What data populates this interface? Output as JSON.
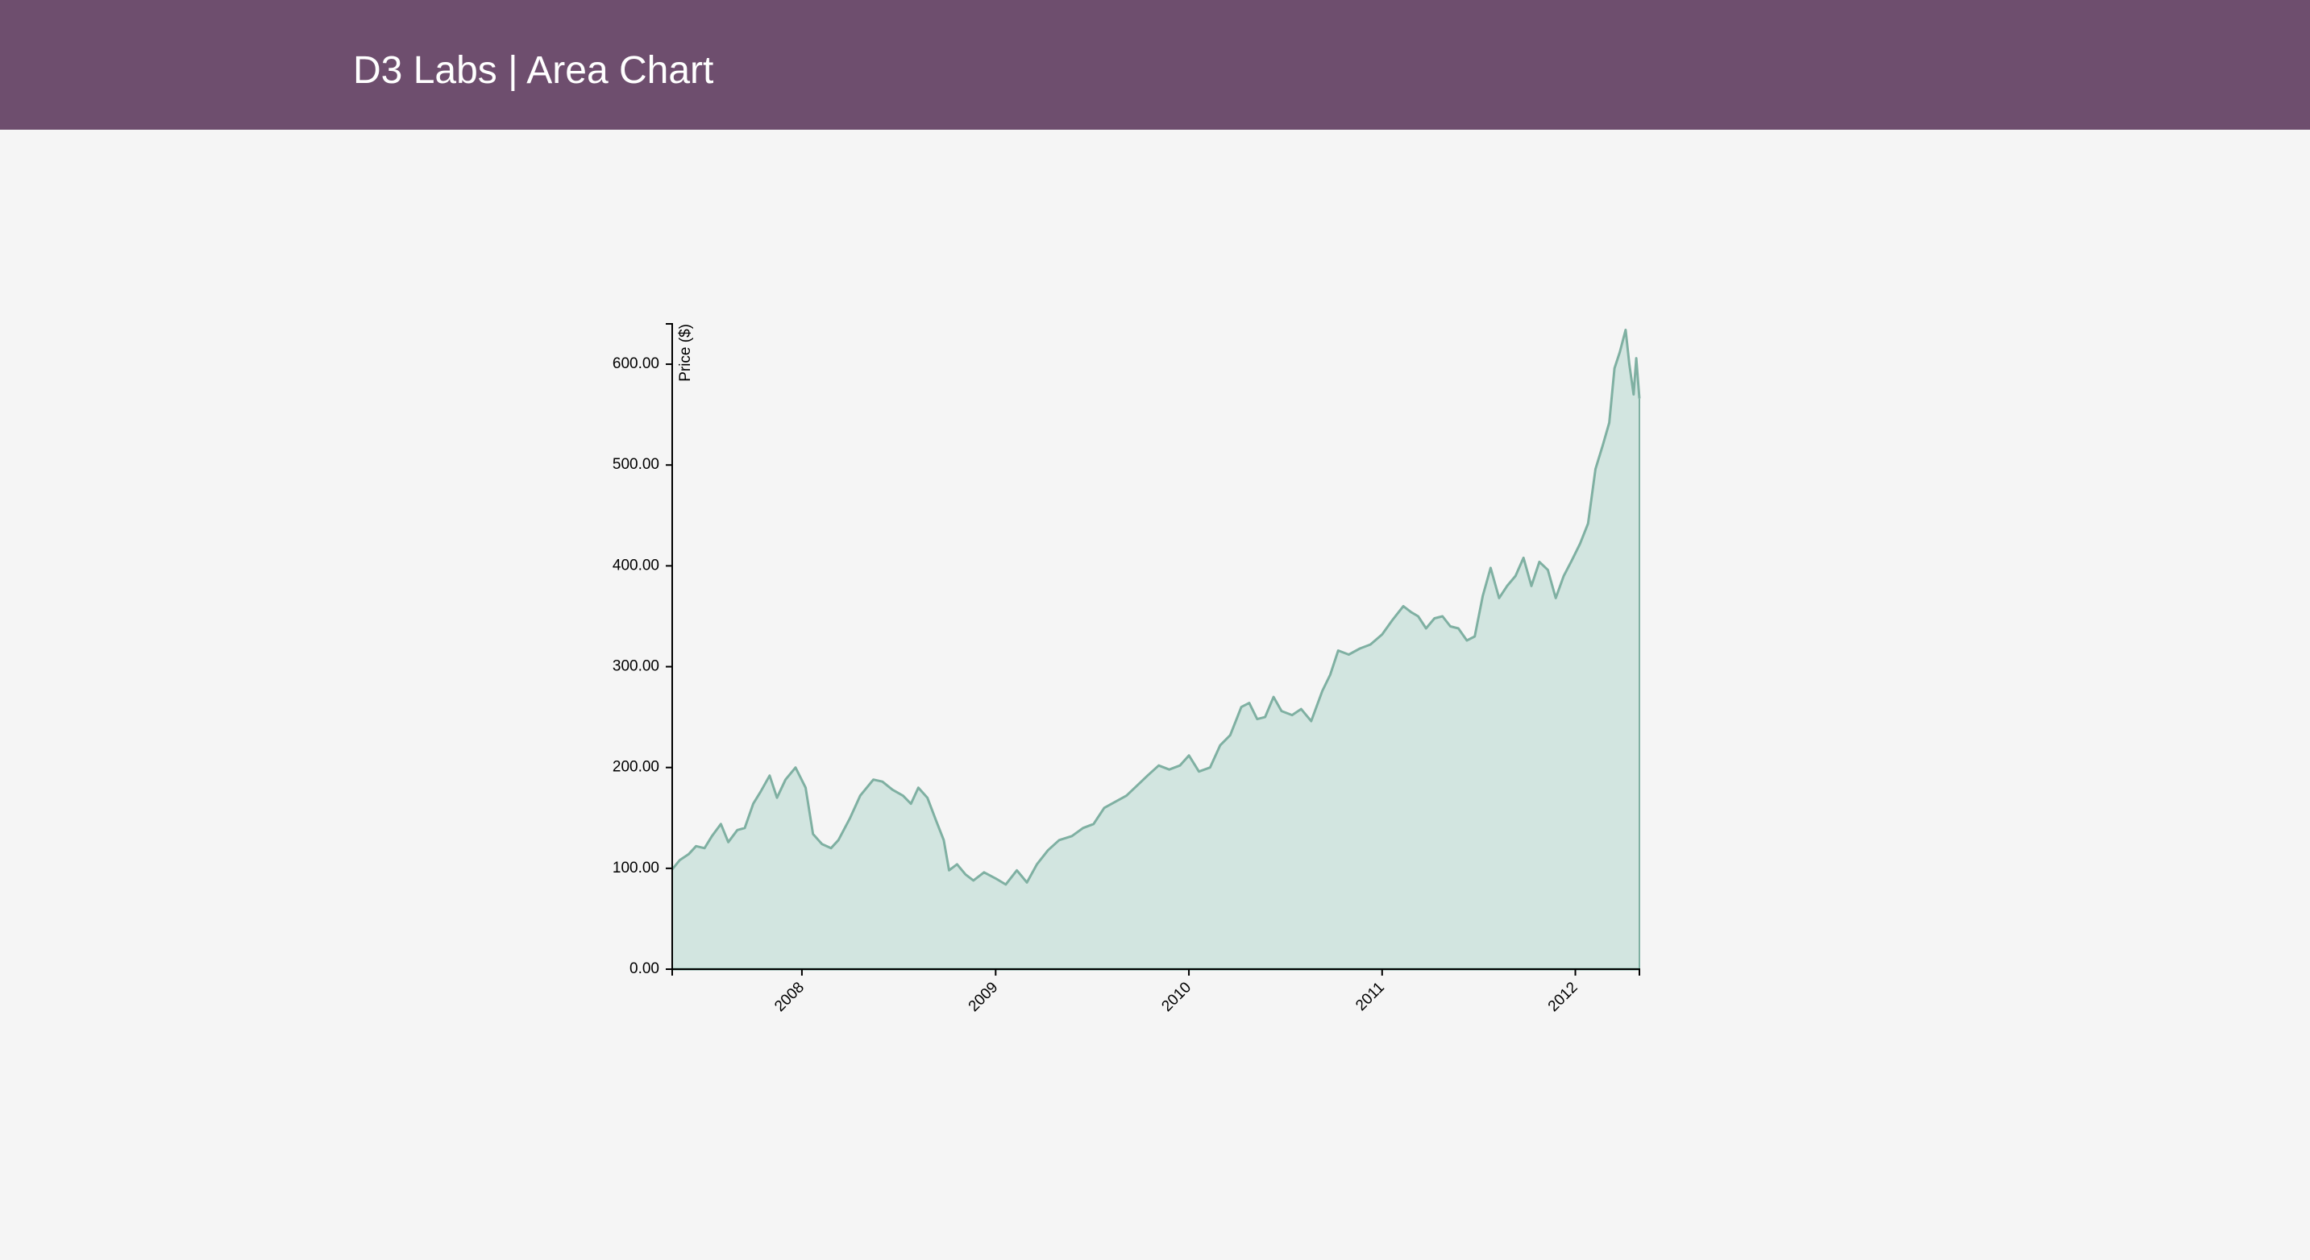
{
  "header": {
    "title": "D3 Labs | Area Chart"
  },
  "colors": {
    "header_bg": "#6e4e6e",
    "page_bg": "#f5f5f5",
    "area_fill": "#d2e5e0",
    "area_stroke": "#7fb0a2",
    "axis": "#000000"
  },
  "chart_data": {
    "type": "area",
    "title": "",
    "xlabel": "",
    "ylabel": "Price ($)",
    "ylim": [
      0,
      640
    ],
    "xlim": [
      "2007-05-01",
      "2012-05-01"
    ],
    "grid": false,
    "y_ticks": [
      {
        "value": 0,
        "label": "0.00"
      },
      {
        "value": 100,
        "label": "100.00"
      },
      {
        "value": 200,
        "label": "200.00"
      },
      {
        "value": 300,
        "label": "300.00"
      },
      {
        "value": 400,
        "label": "400.00"
      },
      {
        "value": 500,
        "label": "500.00"
      },
      {
        "value": 600,
        "label": "600.00"
      }
    ],
    "x_ticks": [
      {
        "value": "2008-01-01",
        "label": "2008"
      },
      {
        "value": "2009-01-01",
        "label": "2009"
      },
      {
        "value": "2010-01-01",
        "label": "2010"
      },
      {
        "value": "2011-01-01",
        "label": "2011"
      },
      {
        "value": "2012-01-01",
        "label": "2012"
      }
    ],
    "series": [
      {
        "points": [
          [
            "2007-05-01",
            99
          ],
          [
            "2007-05-15",
            108
          ],
          [
            "2007-06-01",
            114
          ],
          [
            "2007-06-15",
            122
          ],
          [
            "2007-07-01",
            120
          ],
          [
            "2007-07-15",
            132
          ],
          [
            "2007-08-01",
            144
          ],
          [
            "2007-08-15",
            126
          ],
          [
            "2007-09-01",
            138
          ],
          [
            "2007-09-15",
            140
          ],
          [
            "2007-10-01",
            164
          ],
          [
            "2007-10-15",
            176
          ],
          [
            "2007-11-01",
            192
          ],
          [
            "2007-11-15",
            170
          ],
          [
            "2007-12-01",
            188
          ],
          [
            "2007-12-20",
            200
          ],
          [
            "2008-01-08",
            180
          ],
          [
            "2008-01-22",
            134
          ],
          [
            "2008-02-08",
            124
          ],
          [
            "2008-02-25",
            120
          ],
          [
            "2008-03-10",
            128
          ],
          [
            "2008-04-01",
            150
          ],
          [
            "2008-04-20",
            172
          ],
          [
            "2008-05-15",
            188
          ],
          [
            "2008-06-01",
            186
          ],
          [
            "2008-06-20",
            178
          ],
          [
            "2008-07-10",
            172
          ],
          [
            "2008-07-25",
            164
          ],
          [
            "2008-08-08",
            180
          ],
          [
            "2008-08-25",
            170
          ],
          [
            "2008-09-10",
            148
          ],
          [
            "2008-09-25",
            128
          ],
          [
            "2008-10-05",
            98
          ],
          [
            "2008-10-20",
            104
          ],
          [
            "2008-11-05",
            94
          ],
          [
            "2008-11-20",
            88
          ],
          [
            "2008-12-10",
            96
          ],
          [
            "2009-01-01",
            90
          ],
          [
            "2009-01-20",
            84
          ],
          [
            "2009-02-10",
            98
          ],
          [
            "2009-03-01",
            86
          ],
          [
            "2009-03-20",
            104
          ],
          [
            "2009-04-10",
            118
          ],
          [
            "2009-05-01",
            128
          ],
          [
            "2009-05-25",
            132
          ],
          [
            "2009-06-15",
            140
          ],
          [
            "2009-07-05",
            144
          ],
          [
            "2009-07-25",
            160
          ],
          [
            "2009-08-15",
            166
          ],
          [
            "2009-09-05",
            172
          ],
          [
            "2009-09-25",
            182
          ],
          [
            "2009-10-15",
            192
          ],
          [
            "2009-11-05",
            202
          ],
          [
            "2009-11-25",
            198
          ],
          [
            "2009-12-15",
            202
          ],
          [
            "2010-01-01",
            212
          ],
          [
            "2010-01-20",
            196
          ],
          [
            "2010-02-10",
            200
          ],
          [
            "2010-03-01",
            222
          ],
          [
            "2010-03-20",
            232
          ],
          [
            "2010-04-10",
            260
          ],
          [
            "2010-04-25",
            264
          ],
          [
            "2010-05-10",
            248
          ],
          [
            "2010-05-25",
            250
          ],
          [
            "2010-06-10",
            270
          ],
          [
            "2010-06-25",
            256
          ],
          [
            "2010-07-15",
            252
          ],
          [
            "2010-08-01",
            258
          ],
          [
            "2010-08-20",
            246
          ],
          [
            "2010-09-10",
            276
          ],
          [
            "2010-09-25",
            292
          ],
          [
            "2010-10-10",
            316
          ],
          [
            "2010-10-30",
            312
          ],
          [
            "2010-11-20",
            318
          ],
          [
            "2010-12-10",
            322
          ],
          [
            "2011-01-01",
            332
          ],
          [
            "2011-01-20",
            346
          ],
          [
            "2011-02-10",
            360
          ],
          [
            "2011-02-25",
            354
          ],
          [
            "2011-03-10",
            350
          ],
          [
            "2011-03-25",
            338
          ],
          [
            "2011-04-10",
            348
          ],
          [
            "2011-04-25",
            350
          ],
          [
            "2011-05-10",
            340
          ],
          [
            "2011-05-25",
            338
          ],
          [
            "2011-06-10",
            326
          ],
          [
            "2011-06-25",
            330
          ],
          [
            "2011-07-10",
            370
          ],
          [
            "2011-07-25",
            398
          ],
          [
            "2011-08-10",
            368
          ],
          [
            "2011-08-25",
            380
          ],
          [
            "2011-09-10",
            390
          ],
          [
            "2011-09-25",
            408
          ],
          [
            "2011-10-10",
            380
          ],
          [
            "2011-10-25",
            404
          ],
          [
            "2011-11-10",
            396
          ],
          [
            "2011-11-25",
            368
          ],
          [
            "2011-12-10",
            390
          ],
          [
            "2011-12-25",
            405
          ],
          [
            "2012-01-10",
            422
          ],
          [
            "2012-01-25",
            442
          ],
          [
            "2012-02-08",
            496
          ],
          [
            "2012-02-22",
            520
          ],
          [
            "2012-03-05",
            542
          ],
          [
            "2012-03-15",
            596
          ],
          [
            "2012-03-25",
            612
          ],
          [
            "2012-04-05",
            634
          ],
          [
            "2012-04-12",
            600
          ],
          [
            "2012-04-20",
            570
          ],
          [
            "2012-04-25",
            606
          ],
          [
            "2012-05-01",
            566
          ]
        ]
      }
    ]
  }
}
